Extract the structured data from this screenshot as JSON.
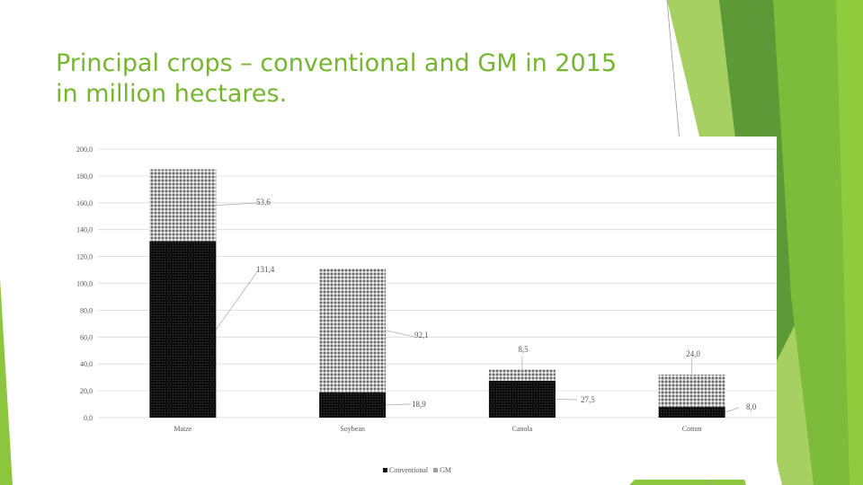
{
  "slide": {
    "title_line1": "Principal crops – conventional and GM in 2015",
    "title_line2": "in million hectares."
  },
  "colors": {
    "accent_green": "#76b531",
    "accent_dark_green": "#4e8a2b",
    "conventional": "#111111",
    "gm": "#9e9e9e"
  },
  "chart_data": {
    "type": "bar",
    "stacked": true,
    "title": "",
    "xlabel": "",
    "ylabel": "",
    "ylim": [
      0,
      200
    ],
    "yticks": [
      "0,0",
      "20,0",
      "40,0",
      "60,0",
      "80,0",
      "100,0",
      "120,0",
      "140,0",
      "160,0",
      "180,0",
      "200,0"
    ],
    "categories": [
      "Maize",
      "Soybean",
      "Canola",
      "Cotton"
    ],
    "series": [
      {
        "name": "Conventional",
        "values": [
          131.4,
          18.9,
          27.5,
          8.0
        ],
        "labels": [
          "131,4",
          "18,9",
          "27,5",
          "8,0"
        ]
      },
      {
        "name": "GM",
        "values": [
          53.6,
          92.1,
          8.5,
          24.0
        ],
        "labels": [
          "53,6",
          "92,1",
          "8,5",
          "24,0"
        ]
      }
    ],
    "legend": {
      "placement": "bottom",
      "items": [
        "Conventional",
        "GM"
      ]
    }
  }
}
